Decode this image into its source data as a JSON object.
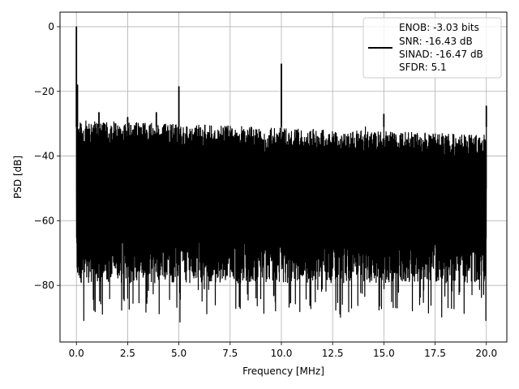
{
  "chart_data": {
    "type": "line",
    "title": "",
    "xlabel": "Frequency [MHz]",
    "ylabel": "PSD [dB]",
    "xlim": [
      -0.8,
      21.0
    ],
    "ylim": [
      -97.5,
      4.5
    ],
    "grid": true,
    "legend_position": "top-right",
    "x_ticks": [
      0.0,
      2.5,
      5.0,
      7.5,
      10.0,
      12.5,
      15.0,
      17.5,
      20.0
    ],
    "x_tick_labels": [
      "0.0",
      "2.5",
      "5.0",
      "7.5",
      "10.0",
      "12.5",
      "15.0",
      "17.5",
      "20.0"
    ],
    "y_ticks": [
      0,
      -20,
      -40,
      -60,
      -80
    ],
    "y_tick_labels": [
      "0",
      "−20",
      "−40",
      "−60",
      "−80"
    ],
    "series": [
      {
        "color": "#000000",
        "x_start": 0.0,
        "x_end": 20.0,
        "baseline": -50,
        "upper_envelope_start": -29,
        "upper_envelope_end": -33.5,
        "lower_envelope": -75,
        "deepest_nulls": [
          -93,
          -92,
          -90,
          -89,
          -88,
          -88,
          -87
        ],
        "spikes": [
          {
            "x": 0.0,
            "y": 0.0
          },
          {
            "x": 0.05,
            "y": -18
          },
          {
            "x": 5.0,
            "y": -18.5
          },
          {
            "x": 10.0,
            "y": -11.5
          },
          {
            "x": 15.0,
            "y": -27
          },
          {
            "x": 20.0,
            "y": -24.5
          },
          {
            "x": 1.1,
            "y": -26.5
          },
          {
            "x": 2.5,
            "y": -28
          },
          {
            "x": 3.9,
            "y": -26.5
          },
          {
            "x": 14.1,
            "y": -31
          }
        ]
      }
    ],
    "legend": {
      "lines": [
        "ENOB: -3.03 bits",
        "SNR: -16.43 dB",
        "SINAD: -16.47 dB",
        "SFDR: 5.1"
      ]
    }
  }
}
